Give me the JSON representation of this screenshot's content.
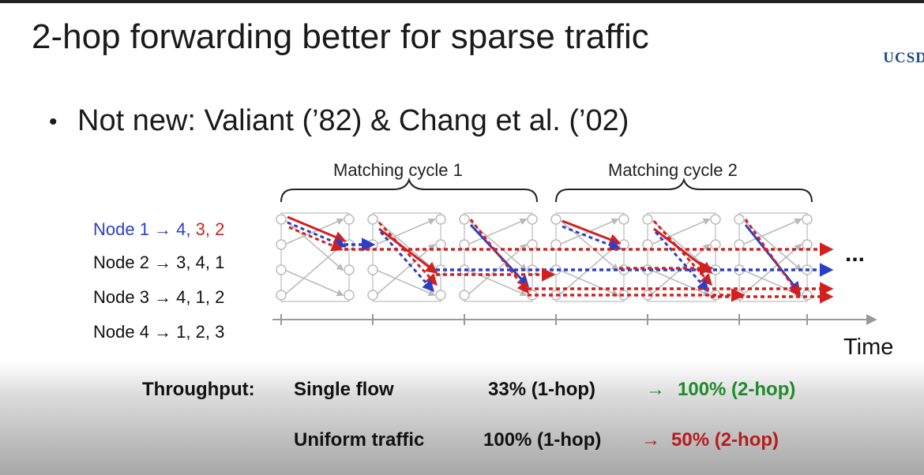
{
  "slide": {
    "title": "2-hop forwarding better for sparse traffic",
    "logo": "UCSD",
    "bullet": "Not new: Valiant (’82) & Chang et al. (’02)"
  },
  "diagram": {
    "cycles": [
      "Matching cycle 1",
      "Matching cycle 2"
    ],
    "nodes": [
      {
        "prefix": "Node 1 → ",
        "blue": "4",
        "sep1": ", ",
        "red": "3, 2"
      },
      {
        "label": "Node 2 → 3, 4, 1"
      },
      {
        "label": "Node 3 → 4, 1, 2"
      },
      {
        "label": "Node 4 → 1, 2, 3"
      }
    ],
    "ellipsis": "...",
    "time_label": "Time",
    "colors": {
      "blue": "#2b3fc6",
      "red": "#d22020",
      "grey": "#b9b9b9"
    }
  },
  "throughput": {
    "heading": "Throughput:",
    "single": {
      "label": "Single flow",
      "before": "33% (1-hop)",
      "arrow": "→",
      "after": "100% (2-hop)"
    },
    "uniform": {
      "label": "Uniform traffic",
      "before": "100% (1-hop)",
      "arrow": "→",
      "after": "50% (2-hop)"
    }
  }
}
